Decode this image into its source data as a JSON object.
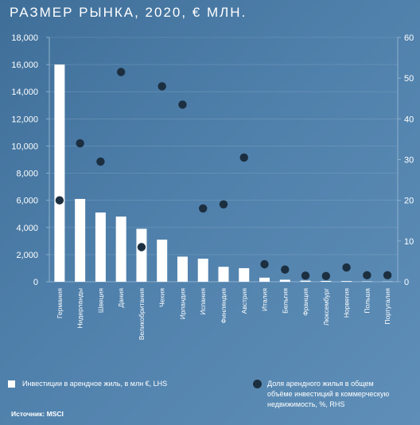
{
  "title": "РАЗМЕР РЫНКА,  2020,  € МЛН.",
  "legend": {
    "bars_label": "Инвестиции в арендное жиль, в млн €, LHS",
    "dots_label_line1": "Доля арендного жилья в общем",
    "dots_label_line2": "объёме инвестиций в коммерческую",
    "dots_label_line3": "недвижимость, %, RHS"
  },
  "source": "Источник: MSCI",
  "colors": {
    "bar": "#ffffff",
    "dot": "#1c2f40",
    "grid": "#8fb0cc",
    "text": "#ffffff"
  },
  "chart_data": {
    "type": "bar",
    "categories": [
      "Германия",
      "Нидерланды",
      "Швеция",
      "Дания",
      "Великобритания",
      "Чехия",
      "Ирландия",
      "Испания",
      "Финляндия",
      "Австрия",
      "Италия",
      "Бельгия",
      "Франция",
      "Люксембург",
      "Норвегия",
      "Польша",
      "Португалия"
    ],
    "series": [
      {
        "name": "Инвестиции в арендное жиль, в млн €, LHS",
        "type": "bar",
        "axis": "left",
        "values": [
          16000,
          6100,
          5100,
          4800,
          3900,
          3100,
          1850,
          1700,
          1100,
          1000,
          300,
          150,
          80,
          60,
          50,
          30,
          20
        ]
      },
      {
        "name": "Доля арендного жилья в общем объёме инвестиций в коммерческую недвижимость, %, RHS",
        "type": "scatter",
        "axis": "right",
        "values": [
          20,
          34,
          29.5,
          51.5,
          8.5,
          48,
          43.5,
          18,
          19,
          30.5,
          4.3,
          3,
          1.5,
          1.4,
          3.5,
          1.6,
          1.6
        ]
      }
    ],
    "ylim_left": [
      0,
      18000
    ],
    "yticks_left": [
      "0",
      "2,000",
      "4,000",
      "6,000",
      "8,000",
      "10,000",
      "12,000",
      "14,000",
      "16,000",
      "18,000"
    ],
    "ylim_right": [
      0,
      60
    ],
    "yticks_right": [
      "0",
      "10",
      "20",
      "30",
      "40",
      "50",
      "60"
    ],
    "grid": true
  }
}
